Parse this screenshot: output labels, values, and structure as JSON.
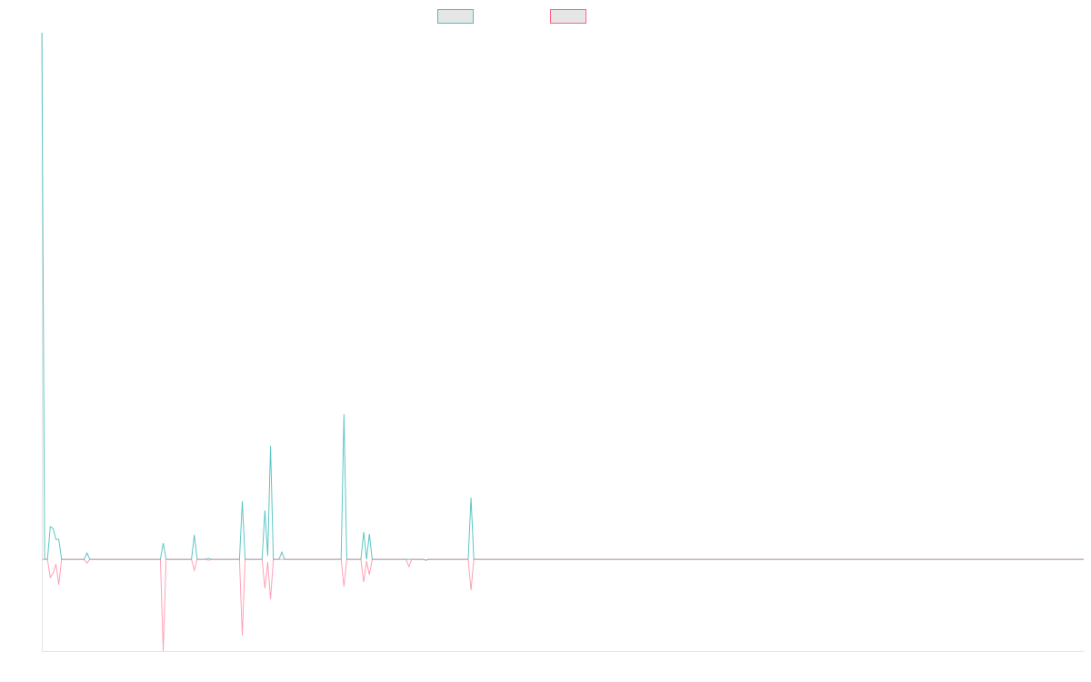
{
  "chart_data": {
    "type": "line",
    "title": "",
    "xlabel": "",
    "ylabel": "",
    "x_count": 370,
    "ylim": [
      -101,
      580
    ],
    "grid": false,
    "legend_placement": "top",
    "series": [
      {
        "color": "#4bc0c0",
        "legend_fill": "#e6e6e6",
        "points": [
          [
            0,
            580
          ],
          [
            1,
            0
          ],
          [
            3,
            36
          ],
          [
            4,
            34
          ],
          [
            5,
            22
          ],
          [
            6,
            22
          ],
          [
            7,
            0
          ],
          [
            16,
            7
          ],
          [
            43,
            18
          ],
          [
            54,
            27
          ],
          [
            59,
            1
          ],
          [
            71,
            64
          ],
          [
            79,
            54
          ],
          [
            80,
            4
          ],
          [
            81,
            125
          ],
          [
            85,
            8
          ],
          [
            107,
            160
          ],
          [
            114,
            30
          ],
          [
            115,
            0
          ],
          [
            116,
            28
          ],
          [
            136,
            -1
          ],
          [
            152,
            68
          ]
        ]
      },
      {
        "color": "#ff6384",
        "legend_fill": "#e6e6e6",
        "points": [
          [
            3,
            -20
          ],
          [
            4,
            -15
          ],
          [
            5,
            -5
          ],
          [
            6,
            -28
          ],
          [
            7,
            0
          ],
          [
            16,
            -4
          ],
          [
            43,
            -101
          ],
          [
            54,
            -12
          ],
          [
            59,
            -1
          ],
          [
            71,
            -84
          ],
          [
            79,
            -32
          ],
          [
            80,
            -3
          ],
          [
            81,
            -44
          ],
          [
            107,
            -30
          ],
          [
            114,
            -25
          ],
          [
            115,
            -2
          ],
          [
            116,
            -17
          ],
          [
            130,
            -8
          ],
          [
            136,
            -1
          ],
          [
            152,
            -34
          ]
        ]
      }
    ]
  }
}
